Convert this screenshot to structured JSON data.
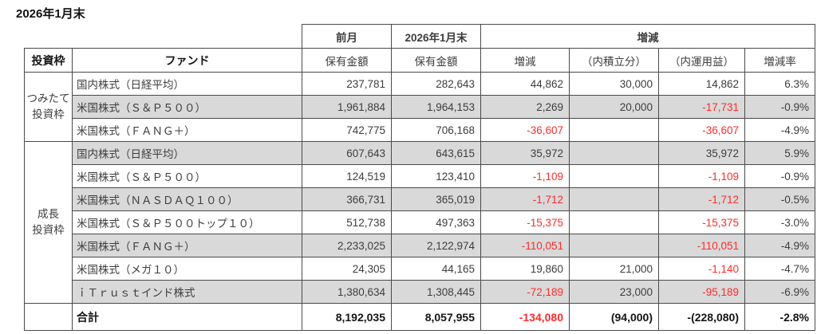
{
  "title": "2026年1月末",
  "colors": {
    "negative_red": "#ff2b2b",
    "row_shade": "#d9d9d9",
    "border_dark": "#1f1f1f",
    "border_inner": "#4a4a4a"
  },
  "table": {
    "header_top": {
      "prev_month": "前月",
      "current_month": "2026年1月末",
      "change_group": "増減"
    },
    "header": {
      "frame": "投資枠",
      "fund": "ファンド",
      "holding_prev": "保有金額",
      "holding_current": "保有金額",
      "change": "増減",
      "accumulation": "（内積立分）",
      "investment_gain": "（内運用益）",
      "change_rate": "増減率"
    },
    "value_col_keys": [
      "prev-holding",
      "current-holding",
      "change",
      "accumulation-portion",
      "investment-gain",
      "change-rate"
    ],
    "groups": [
      {
        "label": "つみたて\n投資枠",
        "rowspan": 3
      },
      {
        "label": "成長\n投資枠",
        "rowspan": 7
      }
    ],
    "rows": [
      {
        "group_start": true,
        "shaded": false,
        "fund": "国内株式（日経平均）",
        "values": [
          "237,781",
          "282,643",
          "44,862",
          "30,000",
          "14,862",
          "6.3%"
        ],
        "red": [
          false,
          false,
          false,
          false,
          false,
          false
        ]
      },
      {
        "group_start": false,
        "shaded": true,
        "fund": "米国株式（Ｓ＆Ｐ５００）",
        "values": [
          "1,961,884",
          "1,964,153",
          "2,269",
          "20,000",
          "-17,731",
          "-0.9%"
        ],
        "red": [
          false,
          false,
          false,
          false,
          true,
          false
        ]
      },
      {
        "group_start": false,
        "shaded": false,
        "fund": "米国株式（ＦＡＮＧ＋）",
        "values": [
          "742,775",
          "706,168",
          "-36,607",
          "",
          "-36,607",
          "-4.9%"
        ],
        "red": [
          false,
          false,
          true,
          false,
          true,
          false
        ]
      },
      {
        "group_start": true,
        "shaded": true,
        "fund": "国内株式（日経平均）",
        "values": [
          "607,643",
          "643,615",
          "35,972",
          "",
          "35,972",
          "5.9%"
        ],
        "red": [
          false,
          false,
          false,
          false,
          false,
          false
        ]
      },
      {
        "group_start": false,
        "shaded": false,
        "fund": "米国株式（Ｓ＆Ｐ５００）",
        "values": [
          "124,519",
          "123,410",
          "-1,109",
          "",
          "-1,109",
          "-0.9%"
        ],
        "red": [
          false,
          false,
          true,
          false,
          true,
          false
        ]
      },
      {
        "group_start": false,
        "shaded": true,
        "fund": "米国株式（ＮＡＳＤＡＱ１００）",
        "values": [
          "366,731",
          "365,019",
          "-1,712",
          "",
          "-1,712",
          "-0.5%"
        ],
        "red": [
          false,
          false,
          true,
          false,
          true,
          false
        ]
      },
      {
        "group_start": false,
        "shaded": false,
        "fund": "米国株式（Ｓ＆Ｐ５００トップ１０）",
        "values": [
          "512,738",
          "497,363",
          "-15,375",
          "",
          "-15,375",
          "-3.0%"
        ],
        "red": [
          false,
          false,
          true,
          false,
          true,
          false
        ]
      },
      {
        "group_start": false,
        "shaded": true,
        "fund": "米国株式（ＦＡＮＧ＋）",
        "values": [
          "2,233,025",
          "2,122,974",
          "-110,051",
          "",
          "-110,051",
          "-4.9%"
        ],
        "red": [
          false,
          false,
          true,
          false,
          true,
          false
        ]
      },
      {
        "group_start": false,
        "shaded": false,
        "fund": "米国株式（メガ１０）",
        "values": [
          "24,305",
          "44,165",
          "19,860",
          "21,000",
          "-1,140",
          "-4.7%"
        ],
        "red": [
          false,
          false,
          false,
          false,
          true,
          false
        ]
      },
      {
        "group_start": false,
        "shaded": true,
        "fund": "ｉＴｒｕｓｔインド株式",
        "values": [
          "1,380,634",
          "1,308,445",
          "-72,189",
          "23,000",
          "-95,189",
          "-6.9%"
        ],
        "red": [
          false,
          false,
          true,
          false,
          true,
          false
        ]
      }
    ],
    "total": {
      "label": "合計",
      "values": [
        "8,192,035",
        "8,057,955",
        "-134,080",
        "(94,000)",
        "-(228,080)",
        "-2.8%"
      ],
      "red": [
        false,
        false,
        true,
        false,
        false,
        false
      ]
    }
  }
}
